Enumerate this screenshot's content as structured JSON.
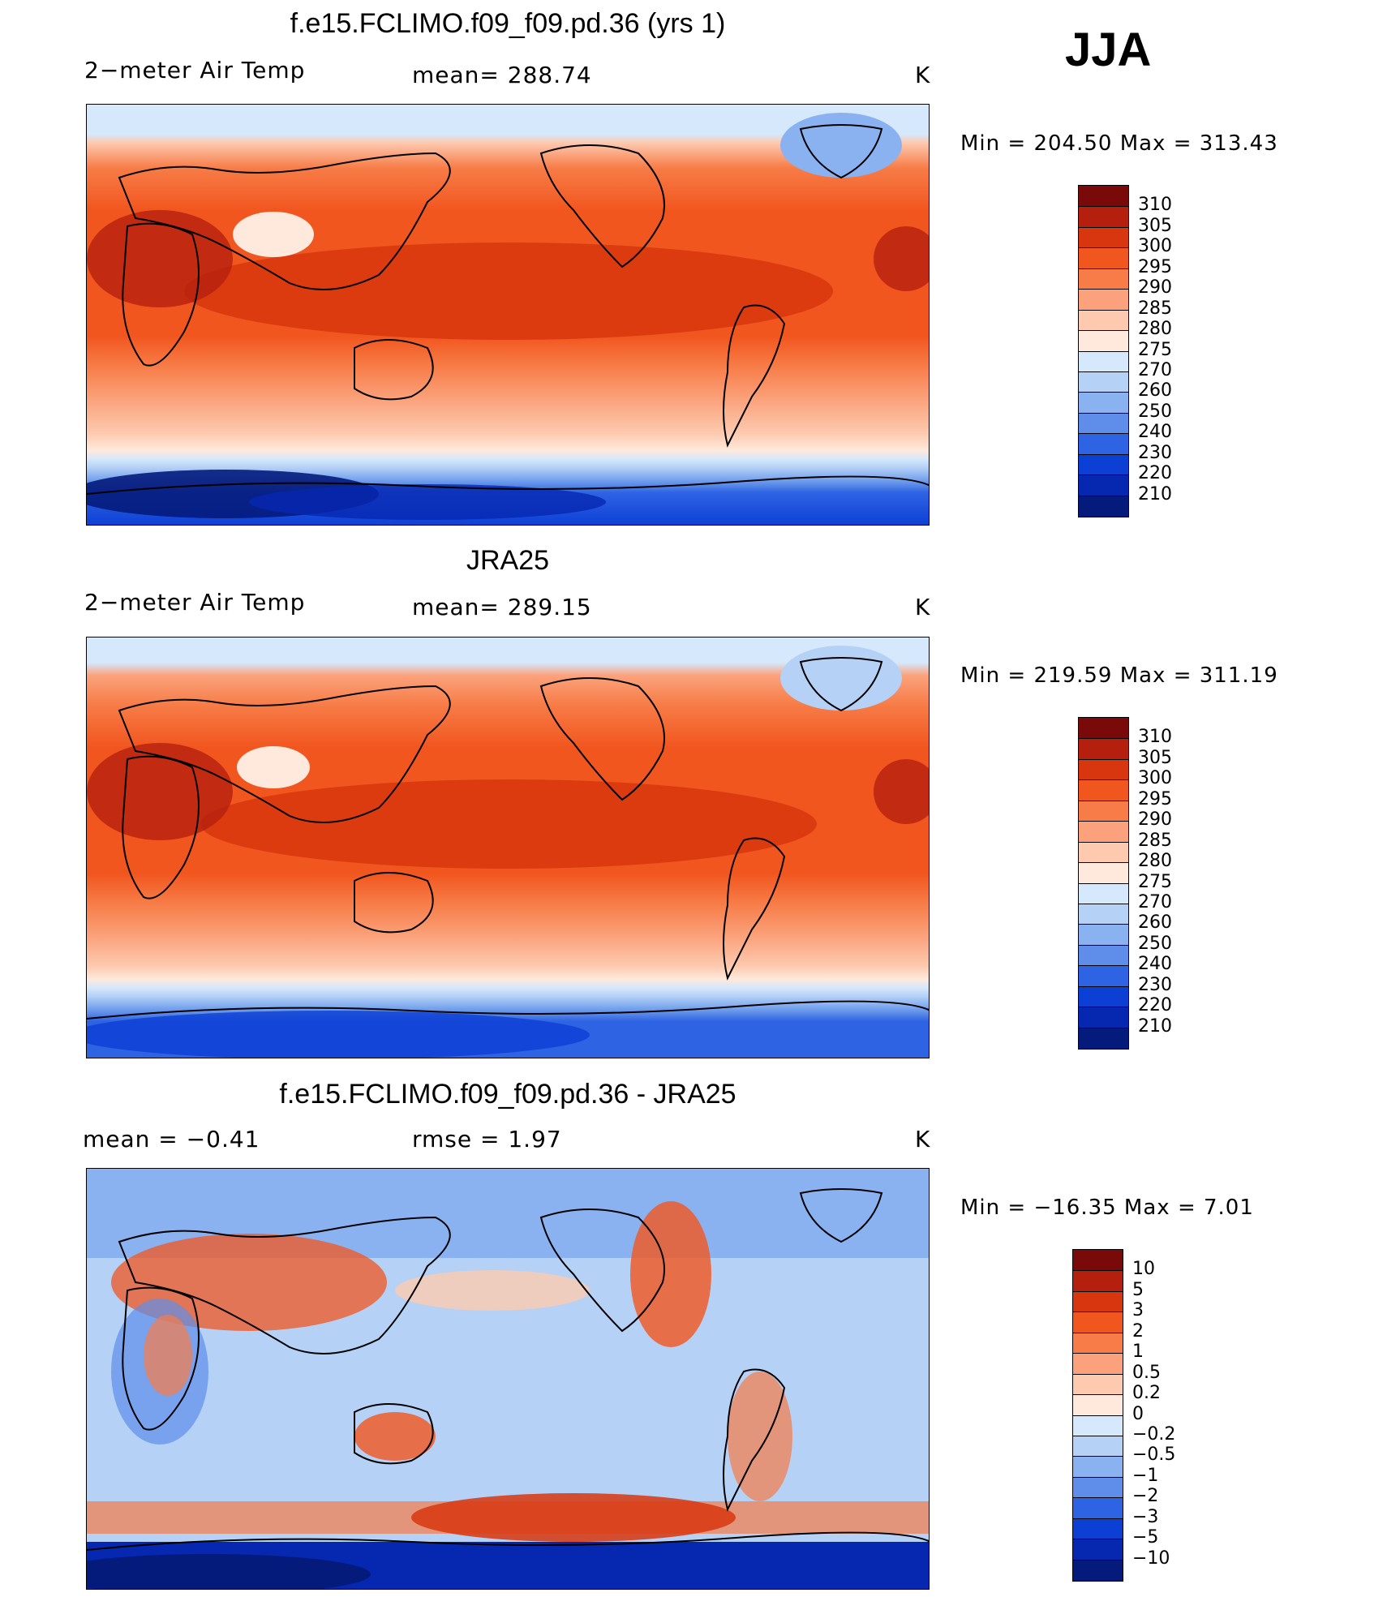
{
  "season": "JJA",
  "panels": [
    {
      "id": "model",
      "title": "f.e15.FCLIMO.f09_f09.pd.36 (yrs 1)",
      "left_label": "2−meter Air Temp",
      "center_label": "mean=  288.74",
      "units": "K",
      "minmax": "Min  =  204.50  Max  =  313.43",
      "colorbar": {
        "labels": [
          "310",
          "305",
          "300",
          "295",
          "290",
          "285",
          "280",
          "275",
          "270",
          "260",
          "250",
          "240",
          "230",
          "220",
          "210"
        ],
        "colors": [
          "#7a0a0a",
          "#b5200e",
          "#d8360e",
          "#f2561f",
          "#f77c47",
          "#fba27c",
          "#fdcab0",
          "#fee9dc",
          "#d6e8fb",
          "#b5d1f6",
          "#8ab2f1",
          "#5e8ee9",
          "#2e63e4",
          "#0c3fd4",
          "#0627b0",
          "#041b7c"
        ]
      }
    },
    {
      "id": "obs",
      "title": "JRA25",
      "left_label": "2−meter Air Temp",
      "center_label": "mean=  289.15",
      "units": "K",
      "minmax": "Min  =  219.59  Max  =  311.19",
      "colorbar": {
        "labels": [
          "310",
          "305",
          "300",
          "295",
          "290",
          "285",
          "280",
          "275",
          "270",
          "260",
          "250",
          "240",
          "230",
          "220",
          "210"
        ],
        "colors": [
          "#7a0a0a",
          "#b5200e",
          "#d8360e",
          "#f2561f",
          "#f77c47",
          "#fba27c",
          "#fdcab0",
          "#fee9dc",
          "#d6e8fb",
          "#b5d1f6",
          "#8ab2f1",
          "#5e8ee9",
          "#2e63e4",
          "#0c3fd4",
          "#0627b0",
          "#041b7c"
        ]
      }
    },
    {
      "id": "diff",
      "title": "f.e15.FCLIMO.f09_f09.pd.36 - JRA25",
      "left_label": "mean  =     −0.41",
      "center_label": "rmse  =      1.97",
      "units": "K",
      "minmax": "Min  =  −16.35  Max  =       7.01",
      "colorbar": {
        "labels": [
          "10",
          "5",
          "3",
          "2",
          "1",
          "0.5",
          "0.2",
          "0",
          "−0.2",
          "−0.5",
          "−1",
          "−2",
          "−3",
          "−5",
          "−10"
        ],
        "colors": [
          "#7a0a0a",
          "#b5200e",
          "#d8360e",
          "#f2561f",
          "#f77c47",
          "#fba27c",
          "#fdcab0",
          "#fee9dc",
          "#d6e8fb",
          "#b5d1f6",
          "#8ab2f1",
          "#5e8ee9",
          "#2e63e4",
          "#0c3fd4",
          "#0627b0",
          "#041b7c"
        ]
      }
    }
  ]
}
